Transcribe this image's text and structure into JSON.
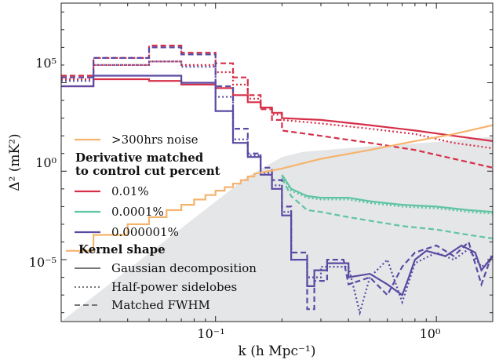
{
  "chart_data": {
    "type": "line",
    "title": "",
    "xlabel": "k (h Mpc⁻¹)",
    "ylabel": "Δ² (mK²)",
    "x_scale": "log",
    "y_scale": "log",
    "xlim": [
      0.02,
      1.8
    ],
    "ylim_log10": [
      -8.5,
      9.5
    ],
    "x_ticks": [
      {
        "value": 0.1,
        "label": "10⁻¹"
      },
      {
        "value": 1.0,
        "label": "10⁰"
      }
    ],
    "y_ticks": [
      {
        "value_log10": 5,
        "label": "10⁵"
      },
      {
        "value_log10": 0,
        "label": "10⁰"
      },
      {
        "value_log10": -5,
        "label": "10⁻⁵"
      }
    ],
    "grid": false,
    "legend_placement": "lower-left",
    "colors": {
      "noise": "#f5b46e",
      "0.01%": "#d62f48",
      "0.0001%": "#5fc4a1",
      "0.000001%": "#5a4aa3",
      "shaded_region": "#e5e6e8",
      "kernel_key": "#777777"
    },
    "legend": {
      "noise_label": ">300hrs noise",
      "cut_heading_1": "Derivative matched",
      "cut_heading_2": "to control cut percent",
      "cut_items": [
        "0.01%",
        "0.0001%",
        "0.000001%"
      ],
      "kernel_heading": "Kernel shape",
      "kernel_items": [
        {
          "label": "Gaussian decomposition",
          "style": "solid"
        },
        {
          "label": "Half-power sidelobes",
          "style": "dotted"
        },
        {
          "label": "Matched FWHM",
          "style": "dashed"
        }
      ]
    },
    "shaded_region": {
      "description_free": true,
      "upper_boundary": [
        [
          0.02,
          -8.5
        ],
        [
          0.14,
          -0.3
        ],
        [
          0.17,
          0.3
        ],
        [
          0.2,
          0.8
        ],
        [
          0.25,
          1.1
        ],
        [
          0.5,
          1.4
        ],
        [
          1.0,
          1.65
        ],
        [
          1.8,
          1.95
        ]
      ]
    },
    "noise_series": {
      "name": ">300hrs noise",
      "points_log10": [
        [
          0.021,
          -4.5
        ],
        [
          0.028,
          -4.5
        ],
        [
          0.028,
          -3.6
        ],
        [
          0.04,
          -3.6
        ],
        [
          0.04,
          -3.0
        ],
        [
          0.05,
          -3.0
        ],
        [
          0.05,
          -2.6
        ],
        [
          0.06,
          -2.6
        ],
        [
          0.06,
          -2.2
        ],
        [
          0.07,
          -2.2
        ],
        [
          0.07,
          -1.9
        ],
        [
          0.08,
          -1.9
        ],
        [
          0.08,
          -1.6
        ],
        [
          0.09,
          -1.6
        ],
        [
          0.09,
          -1.35
        ],
        [
          0.1,
          -1.35
        ],
        [
          0.1,
          -1.1
        ],
        [
          0.11,
          -1.1
        ],
        [
          0.11,
          -0.9
        ],
        [
          0.12,
          -0.9
        ],
        [
          0.12,
          -0.7
        ],
        [
          0.13,
          -0.7
        ],
        [
          0.13,
          -0.5
        ],
        [
          0.14,
          -0.5
        ],
        [
          0.14,
          -0.3
        ],
        [
          0.15,
          -0.3
        ],
        [
          0.15,
          -0.15
        ],
        [
          0.2,
          0.15
        ],
        [
          0.3,
          0.7
        ],
        [
          0.5,
          1.2
        ],
        [
          0.8,
          1.7
        ],
        [
          1.2,
          2.1
        ],
        [
          1.8,
          2.6
        ]
      ]
    },
    "series": [
      {
        "name": "0.01%",
        "kernel": "Gaussian decomposition",
        "style": "solid",
        "color_key": "0.01%",
        "points_log10": [
          [
            0.02,
            4.8
          ],
          [
            0.028,
            4.8
          ],
          [
            0.028,
            5.2
          ],
          [
            0.05,
            5.2
          ],
          [
            0.05,
            5.1
          ],
          [
            0.07,
            5.1
          ],
          [
            0.07,
            4.9
          ],
          [
            0.1,
            4.9
          ],
          [
            0.1,
            4.7
          ],
          [
            0.12,
            4.7
          ],
          [
            0.12,
            4.3
          ],
          [
            0.14,
            4.3
          ],
          [
            0.14,
            3.9
          ],
          [
            0.16,
            3.9
          ],
          [
            0.16,
            3.6
          ],
          [
            0.18,
            3.6
          ],
          [
            0.18,
            3.3
          ],
          [
            0.2,
            3.3
          ],
          [
            0.2,
            3.0
          ],
          [
            0.3,
            2.9
          ],
          [
            0.5,
            2.6
          ],
          [
            0.8,
            2.3
          ],
          [
            1.2,
            2.0
          ],
          [
            1.8,
            1.7
          ]
        ]
      },
      {
        "name": "0.01%",
        "kernel": "Half-power sidelobes",
        "style": "dotted",
        "color_key": "0.01%",
        "points_log10": [
          [
            0.02,
            5.2
          ],
          [
            0.028,
            5.2
          ],
          [
            0.028,
            6.0
          ],
          [
            0.05,
            6.0
          ],
          [
            0.05,
            6.2
          ],
          [
            0.07,
            6.2
          ],
          [
            0.07,
            6.0
          ],
          [
            0.1,
            6.0
          ],
          [
            0.1,
            5.6
          ],
          [
            0.12,
            5.6
          ],
          [
            0.12,
            4.9
          ],
          [
            0.14,
            4.9
          ],
          [
            0.14,
            4.1
          ],
          [
            0.16,
            4.1
          ],
          [
            0.16,
            3.6
          ],
          [
            0.18,
            3.6
          ],
          [
            0.18,
            3.2
          ],
          [
            0.2,
            3.2
          ],
          [
            0.2,
            2.9
          ],
          [
            0.3,
            2.7
          ],
          [
            0.5,
            2.4
          ],
          [
            0.8,
            2.1
          ],
          [
            1.2,
            1.6
          ],
          [
            1.8,
            1.3
          ]
        ]
      },
      {
        "name": "0.01%",
        "kernel": "Matched FWHM",
        "style": "dashed",
        "color_key": "0.01%",
        "points_log10": [
          [
            0.02,
            5.4
          ],
          [
            0.028,
            5.4
          ],
          [
            0.028,
            6.4
          ],
          [
            0.05,
            6.4
          ],
          [
            0.05,
            7.1
          ],
          [
            0.07,
            7.1
          ],
          [
            0.07,
            6.7
          ],
          [
            0.1,
            6.7
          ],
          [
            0.1,
            6.1
          ],
          [
            0.12,
            6.1
          ],
          [
            0.12,
            5.3
          ],
          [
            0.14,
            5.3
          ],
          [
            0.14,
            4.3
          ],
          [
            0.16,
            4.3
          ],
          [
            0.16,
            3.5
          ],
          [
            0.18,
            3.5
          ],
          [
            0.18,
            2.9
          ],
          [
            0.2,
            2.9
          ],
          [
            0.2,
            2.3
          ],
          [
            0.3,
            2.0
          ],
          [
            0.5,
            1.6
          ],
          [
            0.8,
            1.2
          ],
          [
            1.2,
            0.7
          ],
          [
            1.8,
            0.2
          ]
        ]
      },
      {
        "name": "0.0001%",
        "kernel": "Gaussian decomposition",
        "style": "solid",
        "color_key": "0.0001%",
        "points_log10": [
          [
            0.2,
            -0.2
          ],
          [
            0.22,
            -1.0
          ],
          [
            0.26,
            -1.4
          ],
          [
            0.3,
            -1.5
          ],
          [
            0.4,
            -1.5
          ],
          [
            0.5,
            -1.7
          ],
          [
            0.7,
            -1.9
          ],
          [
            1.0,
            -2.0
          ],
          [
            1.4,
            -2.2
          ],
          [
            1.8,
            -2.3
          ]
        ]
      },
      {
        "name": "0.0001%",
        "kernel": "Half-power sidelobes",
        "style": "dotted",
        "color_key": "0.0001%",
        "points_log10": [
          [
            0.2,
            -0.3
          ],
          [
            0.22,
            -1.1
          ],
          [
            0.26,
            -1.5
          ],
          [
            0.3,
            -1.6
          ],
          [
            0.4,
            -1.6
          ],
          [
            0.5,
            -1.8
          ],
          [
            0.7,
            -2.0
          ],
          [
            1.0,
            -2.1
          ],
          [
            1.4,
            -2.3
          ],
          [
            1.8,
            -2.4
          ]
        ]
      },
      {
        "name": "0.0001%",
        "kernel": "Matched FWHM",
        "style": "dashed",
        "color_key": "0.0001%",
        "points_log10": [
          [
            0.2,
            -0.4
          ],
          [
            0.22,
            -1.4
          ],
          [
            0.26,
            -2.2
          ],
          [
            0.3,
            -2.3
          ],
          [
            0.4,
            -2.6
          ],
          [
            0.5,
            -2.8
          ],
          [
            0.7,
            -3.1
          ],
          [
            1.0,
            -3.3
          ],
          [
            1.4,
            -3.6
          ],
          [
            1.8,
            -3.8
          ]
        ]
      },
      {
        "name": "0.000001%",
        "kernel": "Gaussian decomposition",
        "style": "solid",
        "color_key": "0.000001%",
        "points_log10": [
          [
            0.02,
            4.8
          ],
          [
            0.028,
            4.8
          ],
          [
            0.028,
            5.4
          ],
          [
            0.07,
            5.4
          ],
          [
            0.07,
            5.0
          ],
          [
            0.1,
            5.0
          ],
          [
            0.1,
            3.4
          ],
          [
            0.12,
            3.4
          ],
          [
            0.12,
            1.6
          ],
          [
            0.14,
            1.6
          ],
          [
            0.14,
            0.8
          ],
          [
            0.16,
            0.8
          ],
          [
            0.16,
            -0.2
          ],
          [
            0.18,
            -0.2
          ],
          [
            0.18,
            -1.0
          ],
          [
            0.2,
            -1.0
          ],
          [
            0.2,
            -2.5
          ],
          [
            0.22,
            -2.5
          ],
          [
            0.22,
            -5.0
          ],
          [
            0.26,
            -5.0
          ],
          [
            0.26,
            -6.5
          ],
          [
            0.28,
            -6.5
          ],
          [
            0.28,
            -5.6
          ],
          [
            0.32,
            -5.6
          ],
          [
            0.32,
            -5.2
          ],
          [
            0.4,
            -5.2
          ],
          [
            0.4,
            -6.0
          ],
          [
            0.5,
            -5.8
          ],
          [
            0.6,
            -6.4
          ],
          [
            0.7,
            -7.0
          ],
          [
            0.75,
            -6.0
          ],
          [
            0.8,
            -5.0
          ],
          [
            0.9,
            -4.5
          ],
          [
            1.1,
            -4.8
          ],
          [
            1.3,
            -4.2
          ],
          [
            1.5,
            -4.6
          ],
          [
            1.6,
            -5.6
          ],
          [
            1.8,
            -4.8
          ]
        ]
      },
      {
        "name": "0.000001%",
        "kernel": "Half-power sidelobes",
        "style": "dotted",
        "color_key": "0.000001%",
        "points_log10": [
          [
            0.02,
            5.1
          ],
          [
            0.028,
            5.1
          ],
          [
            0.028,
            6.0
          ],
          [
            0.05,
            6.0
          ],
          [
            0.05,
            6.2
          ],
          [
            0.07,
            6.2
          ],
          [
            0.07,
            5.9
          ],
          [
            0.1,
            5.9
          ],
          [
            0.1,
            4.2
          ],
          [
            0.12,
            4.2
          ],
          [
            0.12,
            1.8
          ],
          [
            0.14,
            1.8
          ],
          [
            0.14,
            0.9
          ],
          [
            0.16,
            0.9
          ],
          [
            0.16,
            -0.1
          ],
          [
            0.18,
            -0.1
          ],
          [
            0.18,
            -0.8
          ],
          [
            0.2,
            -0.8
          ],
          [
            0.2,
            -2.3
          ],
          [
            0.22,
            -2.3
          ],
          [
            0.22,
            -5.0
          ],
          [
            0.26,
            -5.0
          ],
          [
            0.26,
            -6.0
          ],
          [
            0.3,
            -6.0
          ],
          [
            0.3,
            -5.4
          ],
          [
            0.4,
            -5.4
          ],
          [
            0.45,
            -8.0
          ],
          [
            0.5,
            -6.0
          ],
          [
            0.6,
            -5.0
          ],
          [
            0.7,
            -7.4
          ],
          [
            0.8,
            -5.2
          ],
          [
            1.0,
            -4.6
          ],
          [
            1.2,
            -5.0
          ],
          [
            1.4,
            -4.4
          ],
          [
            1.6,
            -5.4
          ],
          [
            1.8,
            -5.0
          ]
        ]
      },
      {
        "name": "0.000001%",
        "kernel": "Matched FWHM",
        "style": "dashed",
        "color_key": "0.000001%",
        "points_log10": [
          [
            0.02,
            5.3
          ],
          [
            0.028,
            5.3
          ],
          [
            0.028,
            6.4
          ],
          [
            0.05,
            6.4
          ],
          [
            0.05,
            7.0
          ],
          [
            0.07,
            7.0
          ],
          [
            0.07,
            6.6
          ],
          [
            0.1,
            6.6
          ],
          [
            0.1,
            4.8
          ],
          [
            0.12,
            4.8
          ],
          [
            0.12,
            2.4
          ],
          [
            0.14,
            2.4
          ],
          [
            0.14,
            1.0
          ],
          [
            0.16,
            1.0
          ],
          [
            0.16,
            0.2
          ],
          [
            0.18,
            0.2
          ],
          [
            0.18,
            -0.5
          ],
          [
            0.2,
            -0.5
          ],
          [
            0.2,
            -2.0
          ],
          [
            0.22,
            -2.0
          ],
          [
            0.22,
            -4.6
          ],
          [
            0.26,
            -4.6
          ],
          [
            0.26,
            -7.8
          ],
          [
            0.28,
            -7.8
          ],
          [
            0.28,
            -6.2
          ],
          [
            0.32,
            -6.2
          ],
          [
            0.32,
            -5.0
          ],
          [
            0.38,
            -5.0
          ],
          [
            0.4,
            -6.4
          ],
          [
            0.5,
            -6.0
          ],
          [
            0.6,
            -7.0
          ],
          [
            0.7,
            -5.4
          ],
          [
            0.8,
            -4.6
          ],
          [
            1.0,
            -4.2
          ],
          [
            1.2,
            -4.8
          ],
          [
            1.4,
            -4.0
          ],
          [
            1.6,
            -6.4
          ],
          [
            1.8,
            -4.6
          ]
        ]
      }
    ]
  }
}
